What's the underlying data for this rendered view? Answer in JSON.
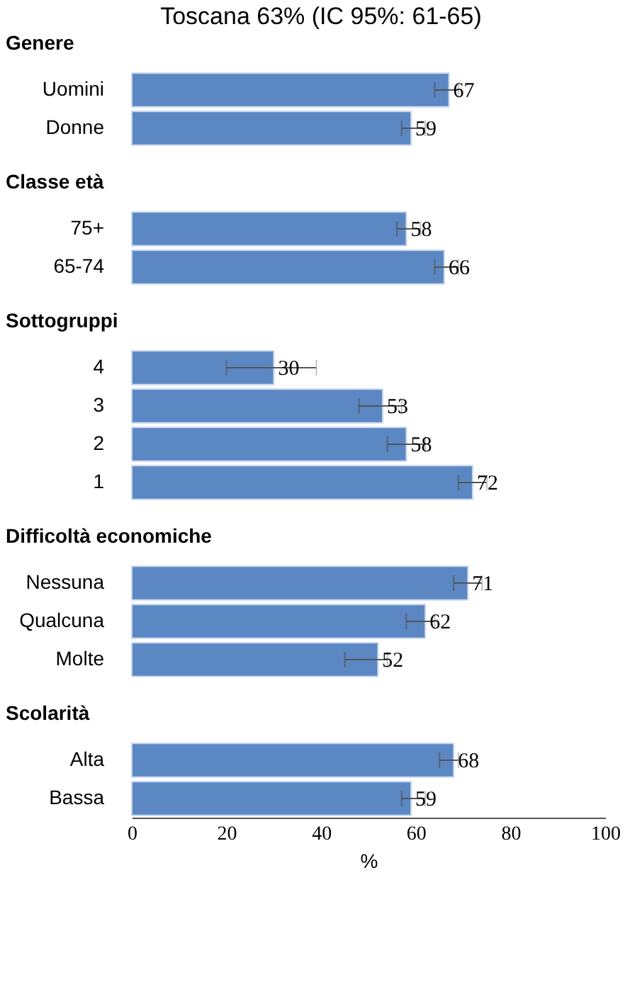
{
  "chart_data": [
    {
      "type": "bar",
      "orientation": "horizontal",
      "title": "Genere",
      "annotations": [
        "Toscana 63% (IC 95%: 61-65)"
      ],
      "categories": [
        "Uomini",
        "Donne"
      ],
      "values": [
        67,
        59
      ],
      "errors": [
        [
          64,
          69
        ],
        [
          57,
          62
        ]
      ],
      "color": "#5b87c3",
      "data_labels": true,
      "xlim": [
        0,
        100
      ],
      "xticks": [
        0,
        20,
        40,
        60,
        80,
        100
      ],
      "tick_labels": "y"
    },
    {
      "type": "bar",
      "orientation": "horizontal",
      "title": "Classe età",
      "categories": [
        "75+",
        "65-74"
      ],
      "values": [
        58,
        66
      ],
      "errors": [
        [
          56,
          61
        ],
        [
          64,
          69
        ]
      ],
      "color": "#5b87c3",
      "data_labels": true,
      "xlim": [
        0,
        100
      ],
      "xticks": [
        0,
        20,
        40,
        60,
        80,
        100
      ],
      "tick_labels": "y"
    },
    {
      "type": "bar",
      "orientation": "horizontal",
      "title": "Sottogruppi",
      "categories": [
        "4",
        "3",
        "2",
        "1"
      ],
      "values": [
        30,
        53,
        58,
        72
      ],
      "errors": [
        [
          20,
          39
        ],
        [
          48,
          57
        ],
        [
          54,
          62
        ],
        [
          69,
          75
        ]
      ],
      "color": "#5b87c3",
      "data_labels": true,
      "xlim": [
        0,
        100
      ],
      "xticks": [
        0,
        20,
        40,
        60,
        80,
        100
      ],
      "tick_labels": "y"
    },
    {
      "type": "bar",
      "orientation": "horizontal",
      "title": "Difficoltà economiche",
      "categories": [
        "Nessuna",
        "Qualcuna",
        "Molte"
      ],
      "values": [
        71,
        62,
        52
      ],
      "errors": [
        [
          68,
          74
        ],
        [
          58,
          64
        ],
        [
          45,
          54
        ]
      ],
      "color": "#5b87c3",
      "data_labels": true,
      "xlim": [
        0,
        100
      ],
      "xticks": [
        0,
        20,
        40,
        60,
        80,
        100
      ],
      "tick_labels": "y"
    },
    {
      "type": "bar",
      "orientation": "horizontal",
      "title": "Scolarità",
      "xlabel": "%",
      "categories": [
        "Alta",
        "Bassa"
      ],
      "values": [
        68,
        59
      ],
      "errors": [
        [
          65,
          69
        ],
        [
          57,
          62
        ]
      ],
      "color": "#5b87c3",
      "data_labels": true,
      "xlim": [
        0,
        100
      ],
      "xticks": [
        0,
        20,
        40,
        60,
        80,
        100
      ]
    }
  ]
}
